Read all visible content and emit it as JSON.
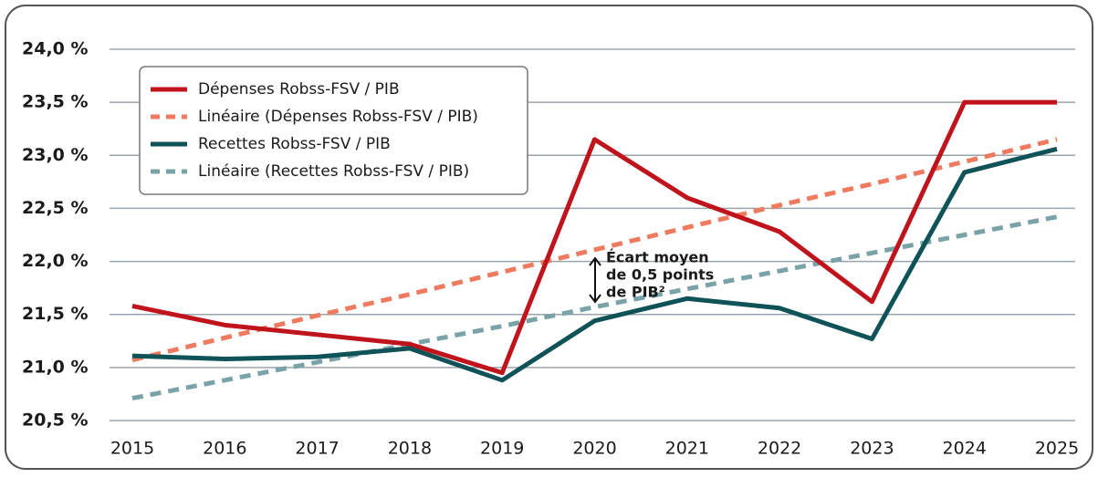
{
  "chart_data": {
    "type": "line",
    "categories": [
      "2015",
      "2016",
      "2017",
      "2018",
      "2019",
      "2020",
      "2021",
      "2022",
      "2023",
      "2024",
      "2025"
    ],
    "series": [
      {
        "name": "Dépenses Robss-FSV / PIB",
        "color": "#c0141c",
        "dashed": false,
        "values": [
          21.58,
          21.4,
          21.31,
          21.22,
          20.95,
          23.15,
          22.6,
          22.28,
          21.62,
          23.5,
          23.5
        ]
      },
      {
        "name": "Linéaire (Dépenses Robss-FSV / PIB)",
        "color": "#ee7a5f",
        "dashed": true,
        "values": [
          21.07,
          21.28,
          21.49,
          21.69,
          21.9,
          22.11,
          22.32,
          22.53,
          22.73,
          22.94,
          23.15
        ]
      },
      {
        "name": "Recettes Robss-FSV / PIB",
        "color": "#0f5257",
        "dashed": false,
        "values": [
          21.11,
          21.08,
          21.1,
          21.18,
          20.88,
          21.44,
          21.65,
          21.56,
          21.27,
          22.84,
          23.06
        ]
      },
      {
        "name": "Linéaire (Recettes Robss-FSV / PIB)",
        "color": "#7aa3a8",
        "dashed": true,
        "values": [
          20.71,
          20.88,
          21.05,
          21.22,
          21.39,
          21.57,
          21.74,
          21.91,
          22.08,
          22.25,
          22.42
        ]
      }
    ],
    "ylim": [
      20.5,
      24.0
    ],
    "yticks": [
      {
        "value": 20.5,
        "label": "20,5 %"
      },
      {
        "value": 21.0,
        "label": "21,0 %"
      },
      {
        "value": 21.5,
        "label": "21,5 %"
      },
      {
        "value": 22.0,
        "label": "22,0 %"
      },
      {
        "value": 22.5,
        "label": "22,5 %"
      },
      {
        "value": 23.0,
        "label": "23,0 %"
      },
      {
        "value": 23.5,
        "label": "23,5 %"
      },
      {
        "value": 24.0,
        "label": "24,0 %"
      }
    ],
    "grid": true,
    "legend": "top-left",
    "annotations": [
      "Écart moyen",
      "de 0,5 points",
      "de PIB²"
    ]
  }
}
